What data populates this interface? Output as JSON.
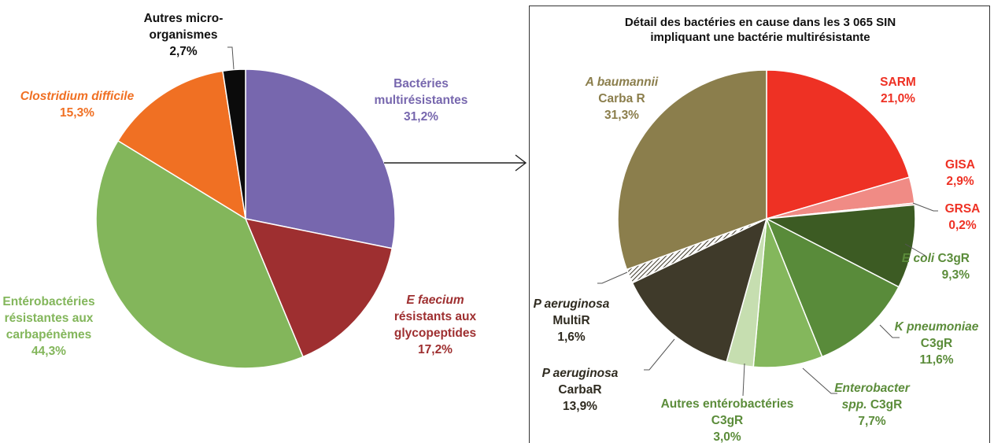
{
  "chart_data": [
    {
      "type": "pie",
      "slices": [
        {
          "label_lines": [
            "Bactéries",
            "multirésistantes"
          ],
          "value_label": "31,2%",
          "value": 31.2,
          "color": "#7767ae",
          "label_color": "#7767ae",
          "italic_lines": []
        },
        {
          "label_lines": [
            "E faecium",
            "résistants aux",
            "glycopeptides"
          ],
          "value_label": "17,2%",
          "value": 17.2,
          "color": "#9e2f30",
          "label_color": "#9e2f30",
          "italic_lines": [
            0
          ]
        },
        {
          "label_lines": [
            "Entérobactéries",
            "résistantes aux",
            "carbapénèmes"
          ],
          "value_label": "44,3%",
          "value": 44.3,
          "color": "#83b65b",
          "label_color": "#83b65b",
          "italic_lines": []
        },
        {
          "label_lines": [
            "Clostridium difficile"
          ],
          "value_label": "15,3%",
          "value": 15.3,
          "color": "#f07023",
          "label_color": "#f07023",
          "italic_lines": [
            0
          ]
        },
        {
          "label_lines": [
            "Autres micro-",
            "organismes"
          ],
          "value_label": "2,7%",
          "value": 2.7,
          "color": "#0b0b0b",
          "label_color": "#111111",
          "italic_lines": []
        }
      ]
    },
    {
      "type": "pie",
      "title_lines": [
        "Détail des bactéries en cause dans les 3 065 SIN",
        "impliquant une bactérie multirésistante"
      ],
      "slices": [
        {
          "label_lines": [
            "SARM"
          ],
          "value_label": "21,0%",
          "value": 21.0,
          "color": "#ee3124",
          "label_color": "#ee3124",
          "italic_lines": []
        },
        {
          "label_lines": [
            "GISA"
          ],
          "value_label": "2,9%",
          "value": 2.9,
          "color": "#f08b85",
          "label_color": "#ee3124",
          "italic_lines": []
        },
        {
          "label_lines": [
            "GRSA"
          ],
          "value_label": "0,2%",
          "value": 0.2,
          "color": "#f4a29c",
          "label_color": "#ee3124",
          "italic_lines": []
        },
        {
          "label_lines": [
            "E coli C3gR"
          ],
          "value_label": "9,3%",
          "value": 9.3,
          "color": "#3c5b23",
          "label_color": "#5b8c3a",
          "italic_lines": []
        },
        {
          "label_lines": [
            "K pneumoniae",
            "C3gR"
          ],
          "value_label": "11,6%",
          "value": 11.6,
          "color": "#598b3a",
          "label_color": "#5b8c3a",
          "italic_lines": [
            0
          ]
        },
        {
          "label_lines": [
            "Enterobacter",
            "spp. C3gR"
          ],
          "value_label": "7,7%",
          "value": 7.7,
          "color": "#84b75c",
          "label_color": "#5b8c3a",
          "italic_lines": [
            0
          ]
        },
        {
          "label_lines": [
            "Autres entérobactéries",
            "C3gR"
          ],
          "value_label": "3,0%",
          "value": 3.0,
          "color": "#c6deb0",
          "label_color": "#5b8c3a",
          "italic_lines": []
        },
        {
          "label_lines": [
            "P aeruginosa",
            "CarbaR"
          ],
          "value_label": "13,9%",
          "value": 13.9,
          "color": "#3f3a2a",
          "label_color": "#2f2b20",
          "italic_lines": [
            0
          ]
        },
        {
          "label_lines": [
            "P aeruginosa",
            "MultiR"
          ],
          "value_label": "1,6%",
          "value": 1.6,
          "color": "hatch",
          "label_color": "#2f2b20",
          "italic_lines": [
            0
          ]
        },
        {
          "label_lines": [
            "A baumannii",
            "Carba R"
          ],
          "value_label": "31,3%",
          "value": 31.3,
          "color": "#8b7e4c",
          "label_color": "#8b7e4c",
          "italic_lines": [
            0
          ]
        }
      ]
    }
  ]
}
